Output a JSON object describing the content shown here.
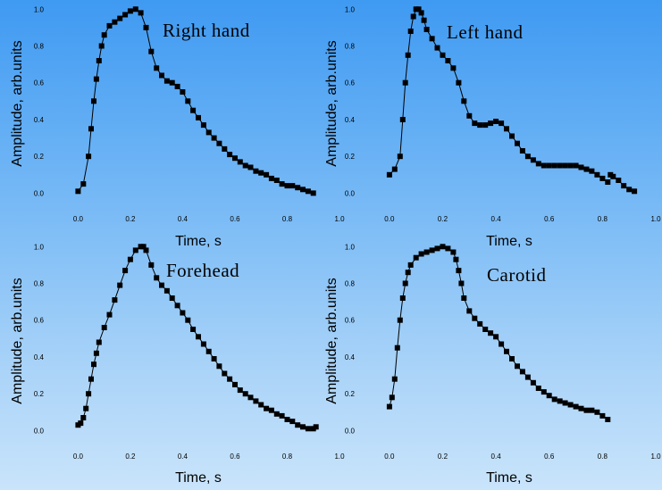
{
  "chart_data": [
    {
      "type": "line",
      "title": "Right hand",
      "xlabel": "Time, s",
      "ylabel": "Amplitude, arb.units",
      "xlim": [
        -0.08,
        1.0
      ],
      "ylim": [
        -0.1,
        1.05
      ],
      "xticks": [
        "0.0",
        "0.2",
        "0.4",
        "0.6",
        "0.8",
        "1.0"
      ],
      "yticks": [
        "0.0",
        "0.2",
        "0.4",
        "0.6",
        "0.8",
        "1.0"
      ],
      "marker": "square",
      "series": [
        {
          "x": [
            0,
            0.02,
            0.04,
            0.05,
            0.06,
            0.07,
            0.08,
            0.09,
            0.1,
            0.12,
            0.14,
            0.16,
            0.18,
            0.2,
            0.22,
            0.24,
            0.26,
            0.28,
            0.3,
            0.32,
            0.34,
            0.36,
            0.38,
            0.4,
            0.42,
            0.44,
            0.46,
            0.48,
            0.5,
            0.52,
            0.54,
            0.56,
            0.58,
            0.6,
            0.62,
            0.64,
            0.66,
            0.68,
            0.7,
            0.72,
            0.74,
            0.76,
            0.78,
            0.8,
            0.82,
            0.84,
            0.86,
            0.88,
            0.9
          ],
          "y": [
            0.01,
            0.05,
            0.2,
            0.35,
            0.5,
            0.62,
            0.72,
            0.8,
            0.86,
            0.91,
            0.93,
            0.95,
            0.97,
            0.99,
            1.0,
            0.98,
            0.9,
            0.77,
            0.68,
            0.64,
            0.61,
            0.6,
            0.58,
            0.55,
            0.5,
            0.45,
            0.41,
            0.37,
            0.33,
            0.3,
            0.27,
            0.24,
            0.21,
            0.19,
            0.17,
            0.15,
            0.14,
            0.12,
            0.11,
            0.1,
            0.08,
            0.07,
            0.05,
            0.04,
            0.04,
            0.03,
            0.02,
            0.01,
            0.0
          ]
        }
      ]
    },
    {
      "type": "line",
      "title": "Left hand",
      "xlabel": "Time, s",
      "ylabel": "Amplitude, arb.units",
      "xlim": [
        -0.08,
        1.0
      ],
      "ylim": [
        -0.1,
        1.05
      ],
      "xticks": [
        "0.0",
        "0.2",
        "0.4",
        "0.6",
        "0.8",
        "1.0"
      ],
      "yticks": [
        "0.0",
        "0.2",
        "0.4",
        "0.6",
        "0.8",
        "1.0"
      ],
      "marker": "square",
      "series": [
        {
          "x": [
            0,
            0.02,
            0.04,
            0.05,
            0.06,
            0.07,
            0.08,
            0.09,
            0.1,
            0.11,
            0.12,
            0.13,
            0.14,
            0.16,
            0.18,
            0.2,
            0.22,
            0.24,
            0.26,
            0.28,
            0.3,
            0.32,
            0.34,
            0.36,
            0.38,
            0.4,
            0.42,
            0.44,
            0.46,
            0.48,
            0.5,
            0.52,
            0.54,
            0.56,
            0.58,
            0.6,
            0.62,
            0.64,
            0.66,
            0.68,
            0.7,
            0.72,
            0.74,
            0.76,
            0.78,
            0.8,
            0.82
          ],
          "y": [
            0.1,
            0.13,
            0.2,
            0.4,
            0.6,
            0.75,
            0.88,
            0.96,
            1.0,
            1.0,
            0.98,
            0.94,
            0.89,
            0.84,
            0.79,
            0.75,
            0.72,
            0.68,
            0.6,
            0.5,
            0.42,
            0.38,
            0.37,
            0.37,
            0.38,
            0.39,
            0.38,
            0.35,
            0.31,
            0.27,
            0.23,
            0.2,
            0.18,
            0.16,
            0.15,
            0.15,
            0.15,
            0.15,
            0.15,
            0.15,
            0.15,
            0.14,
            0.13,
            0.12,
            0.1,
            0.08,
            0.06
          ]
        },
        {
          "x": [
            0.83,
            0.84,
            0.86,
            0.88,
            0.9,
            0.92
          ],
          "y": [
            0.1,
            0.09,
            0.07,
            0.04,
            0.02,
            0.01
          ]
        }
      ]
    },
    {
      "type": "line",
      "title": "Forehead",
      "xlabel": "Time, s",
      "ylabel": "Amplitude, arb.units",
      "xlim": [
        -0.08,
        1.0
      ],
      "ylim": [
        -0.1,
        1.05
      ],
      "xticks": [
        "0.0",
        "0.2",
        "0.4",
        "0.6",
        "0.8",
        "1.0"
      ],
      "yticks": [
        "0.0",
        "0.2",
        "0.4",
        "0.6",
        "0.8",
        "1.0"
      ],
      "marker": "square",
      "series": [
        {
          "x": [
            0,
            0.01,
            0.02,
            0.03,
            0.04,
            0.05,
            0.06,
            0.07,
            0.08,
            0.1,
            0.12,
            0.14,
            0.16,
            0.18,
            0.2,
            0.22,
            0.24,
            0.25,
            0.26,
            0.28,
            0.3,
            0.32,
            0.34,
            0.36,
            0.38,
            0.4,
            0.42,
            0.44,
            0.46,
            0.48,
            0.5,
            0.52,
            0.54,
            0.56,
            0.58,
            0.6,
            0.62,
            0.64,
            0.66,
            0.68,
            0.7,
            0.72,
            0.74,
            0.76,
            0.78,
            0.8,
            0.82,
            0.84,
            0.86,
            0.88,
            0.9,
            0.91
          ],
          "y": [
            0.03,
            0.04,
            0.07,
            0.12,
            0.2,
            0.28,
            0.36,
            0.42,
            0.48,
            0.56,
            0.63,
            0.71,
            0.79,
            0.87,
            0.93,
            0.98,
            1.0,
            1.0,
            0.98,
            0.9,
            0.83,
            0.79,
            0.76,
            0.72,
            0.68,
            0.64,
            0.6,
            0.55,
            0.51,
            0.47,
            0.43,
            0.39,
            0.35,
            0.31,
            0.28,
            0.25,
            0.22,
            0.2,
            0.18,
            0.16,
            0.14,
            0.12,
            0.11,
            0.09,
            0.08,
            0.06,
            0.05,
            0.03,
            0.02,
            0.01,
            0.01,
            0.02
          ]
        }
      ]
    },
    {
      "type": "line",
      "title": "Carotid",
      "xlabel": "Time, s",
      "ylabel": "Amplitude, arb.units",
      "xlim": [
        -0.08,
        1.0
      ],
      "ylim": [
        -0.1,
        1.05
      ],
      "xticks": [
        "0.0",
        "0.2",
        "0.4",
        "0.6",
        "0.8",
        "1.0"
      ],
      "yticks": [
        "0.0",
        "0.2",
        "0.4",
        "0.6",
        "0.8",
        "1.0"
      ],
      "marker": "square",
      "series": [
        {
          "x": [
            0,
            0.01,
            0.02,
            0.03,
            0.04,
            0.05,
            0.06,
            0.07,
            0.08,
            0.1,
            0.12,
            0.14,
            0.16,
            0.18,
            0.2,
            0.22,
            0.24,
            0.25,
            0.26,
            0.27,
            0.28,
            0.3,
            0.32,
            0.34,
            0.36,
            0.38,
            0.4,
            0.42,
            0.44,
            0.46,
            0.48,
            0.5,
            0.52,
            0.54,
            0.56,
            0.58,
            0.6,
            0.62,
            0.64,
            0.66,
            0.68,
            0.7,
            0.72,
            0.74,
            0.76,
            0.78,
            0.8,
            0.82
          ],
          "y": [
            0.13,
            0.18,
            0.28,
            0.45,
            0.6,
            0.72,
            0.8,
            0.86,
            0.9,
            0.94,
            0.96,
            0.97,
            0.98,
            0.99,
            1.0,
            0.99,
            0.97,
            0.93,
            0.87,
            0.8,
            0.72,
            0.65,
            0.61,
            0.58,
            0.55,
            0.53,
            0.51,
            0.47,
            0.43,
            0.39,
            0.35,
            0.32,
            0.29,
            0.26,
            0.23,
            0.21,
            0.19,
            0.17,
            0.16,
            0.15,
            0.14,
            0.13,
            0.12,
            0.11,
            0.11,
            0.1,
            0.08,
            0.06
          ]
        }
      ]
    }
  ]
}
